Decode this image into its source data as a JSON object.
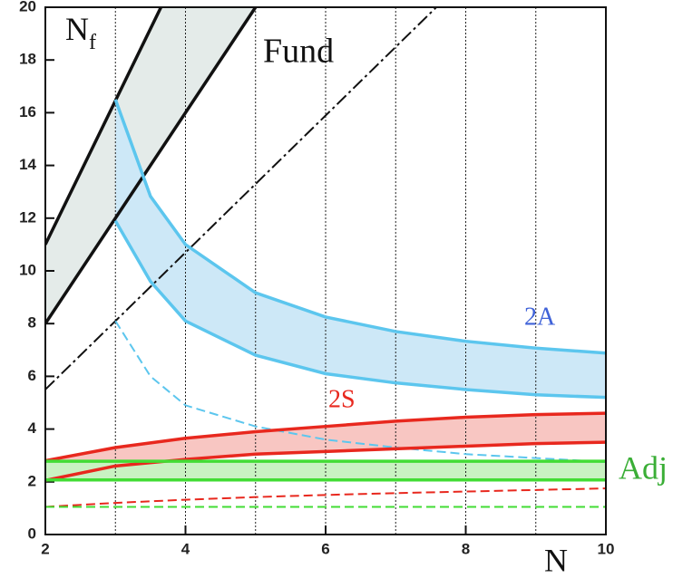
{
  "chart_data": {
    "type": "band-line",
    "xlabel": "N",
    "ylabel": "N",
    "ylabel_sub": "f",
    "xlim": [
      2,
      10
    ],
    "ylim": [
      0,
      20
    ],
    "xticks": [
      2,
      4,
      6,
      8,
      10
    ],
    "yticks": [
      0,
      2,
      4,
      6,
      8,
      10,
      12,
      14,
      16,
      18,
      20
    ],
    "xgrid": [
      3,
      4,
      5,
      6,
      7,
      8,
      9
    ],
    "series": [
      {
        "name": "Fund",
        "color": "#111111",
        "fill": "#e4ebe9",
        "label_color": "#111111",
        "upper": {
          "x": [
            2,
            3.65
          ],
          "values": [
            11,
            20
          ]
        },
        "lower": {
          "x": [
            2,
            5
          ],
          "values": [
            8,
            20
          ]
        },
        "dashed": {
          "x": [
            2,
            7.58
          ],
          "values": [
            5.5,
            20
          ]
        }
      },
      {
        "name": "2A",
        "color": "#5cc6ee",
        "fill": "#cde8f7",
        "label_color": "#3f62d8",
        "upper": {
          "x": [
            3,
            3.5,
            4,
            5,
            6,
            7,
            8,
            9,
            10
          ],
          "values": [
            16.5,
            12.83,
            11,
            9.17,
            8.25,
            7.7,
            7.33,
            7.07,
            6.88
          ]
        },
        "lower": {
          "x": [
            3,
            3.5,
            4,
            5,
            6,
            7,
            8,
            9,
            10
          ],
          "values": [
            11.9,
            9.6,
            8.1,
            6.8,
            6.1,
            5.75,
            5.5,
            5.3,
            5.2
          ]
        },
        "dashed": {
          "x": [
            3,
            3.5,
            4,
            5,
            6,
            7,
            8,
            9,
            10
          ],
          "values": [
            8.1,
            6.0,
            4.9,
            4.1,
            3.6,
            3.3,
            3.05,
            2.9,
            2.75
          ]
        }
      },
      {
        "name": "2S",
        "color": "#e8281e",
        "fill": "#f8c6c2",
        "label_color": "#e8281e",
        "upper": {
          "x": [
            2,
            3,
            4,
            5,
            6,
            7,
            8,
            9,
            10
          ],
          "values": [
            2.8,
            3.3,
            3.65,
            3.9,
            4.1,
            4.3,
            4.45,
            4.55,
            4.6
          ]
        },
        "lower": {
          "x": [
            2,
            3,
            4,
            5,
            6,
            7,
            8,
            9,
            10
          ],
          "values": [
            2.05,
            2.6,
            2.85,
            3.05,
            3.15,
            3.25,
            3.35,
            3.45,
            3.5
          ]
        },
        "dashed": {
          "x": [
            2,
            3,
            4,
            5,
            6,
            7,
            8,
            9,
            10
          ],
          "values": [
            1.05,
            1.2,
            1.32,
            1.42,
            1.5,
            1.57,
            1.63,
            1.69,
            1.75
          ]
        }
      },
      {
        "name": "Adj",
        "color": "#42dc34",
        "fill": "#c9f2c2",
        "label_color": "#3aae36",
        "upper": {
          "x": [
            2,
            10
          ],
          "values": [
            2.78,
            2.78
          ]
        },
        "lower": {
          "x": [
            2,
            10
          ],
          "values": [
            2.07,
            2.07
          ]
        },
        "dashed": {
          "x": [
            2,
            10
          ],
          "values": [
            1.05,
            1.05
          ]
        }
      }
    ]
  }
}
